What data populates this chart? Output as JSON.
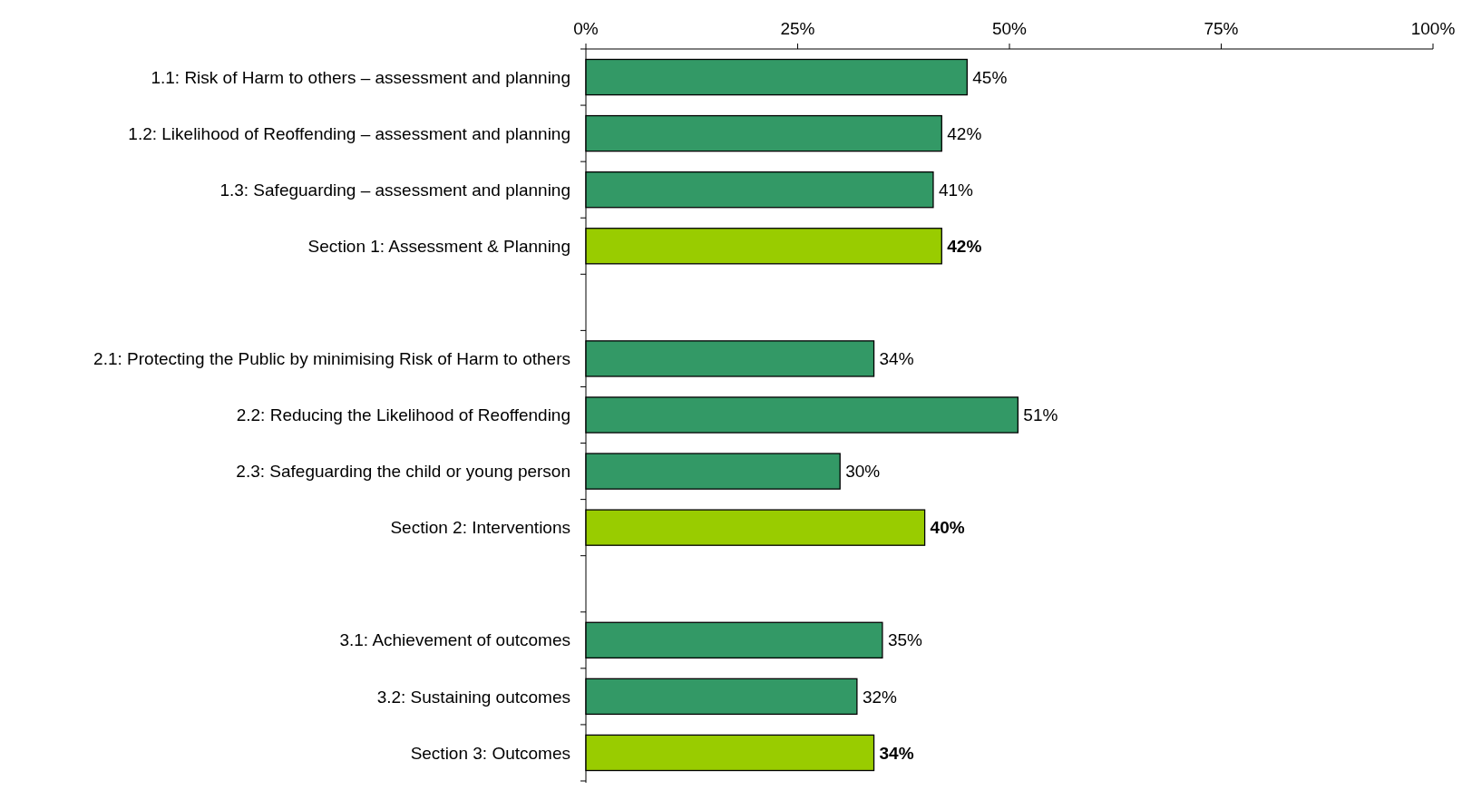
{
  "chart_data": {
    "type": "bar",
    "orientation": "horizontal",
    "categories": [
      "1.1: Risk of Harm to others – assessment and planning",
      "1.2: Likelihood of Reoffending – assessment and planning",
      "1.3: Safeguarding – assessment and planning",
      "Section 1: Assessment & Planning",
      null,
      "2.1: Protecting the Public by minimising Risk of Harm to others",
      "2.2: Reducing the Likelihood of Reoffending",
      "2.3: Safeguarding the child or young person",
      "Section 2: Interventions",
      null,
      "3.1: Achievement of outcomes",
      "3.2: Sustaining outcomes",
      "Section 3: Outcomes"
    ],
    "series": [
      {
        "color": "#339966",
        "values": [
          45,
          42,
          41,
          null,
          null,
          34,
          51,
          30,
          null,
          null,
          35,
          32,
          null
        ],
        "value_labels": [
          "45%",
          "42%",
          "41%",
          null,
          null,
          "34%",
          "51%",
          "30%",
          null,
          null,
          "35%",
          "32%",
          null
        ]
      },
      {
        "color": "#99cc00",
        "values": [
          null,
          null,
          null,
          42,
          null,
          null,
          null,
          null,
          40,
          null,
          null,
          null,
          34
        ],
        "value_labels": [
          null,
          null,
          null,
          "42%",
          null,
          null,
          null,
          null,
          "40%",
          null,
          null,
          null,
          "34%"
        ]
      }
    ],
    "xlim": [
      0,
      100
    ],
    "xticks": [
      {
        "value": 0,
        "label": "0%"
      },
      {
        "value": 25,
        "label": "25%"
      },
      {
        "value": 50,
        "label": "50%"
      },
      {
        "value": 75,
        "label": "75%"
      },
      {
        "value": 100,
        "label": "100%"
      }
    ],
    "grid": false
  }
}
